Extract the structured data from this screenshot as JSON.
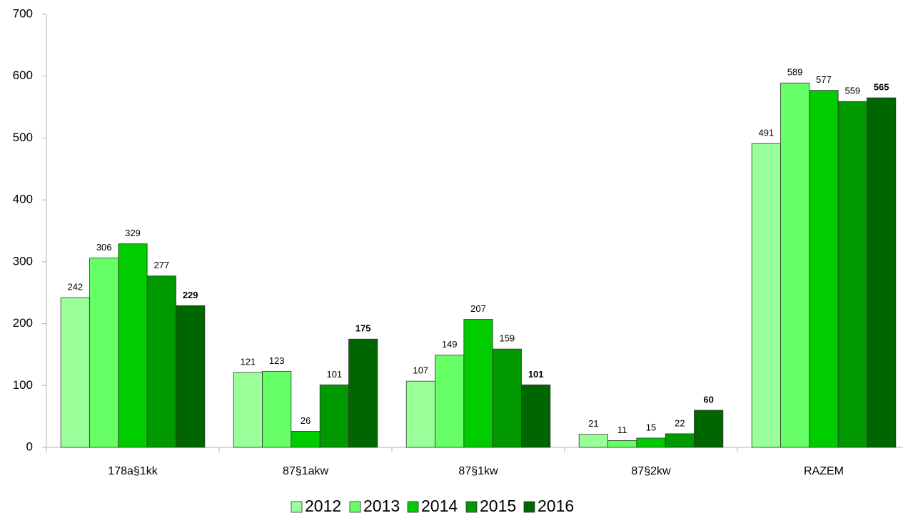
{
  "chart_data": {
    "type": "bar",
    "categories": [
      "178a§1kk",
      "87§1akw",
      "87§1kw",
      "87§2kw",
      "RAZEM"
    ],
    "series": [
      {
        "name": "2012",
        "color": "#99ff99",
        "values": [
          242,
          121,
          107,
          21,
          491
        ]
      },
      {
        "name": "2013",
        "color": "#66ff66",
        "values": [
          306,
          123,
          149,
          11,
          589
        ]
      },
      {
        "name": "2014",
        "color": "#00cc00",
        "values": [
          329,
          26,
          207,
          15,
          577
        ]
      },
      {
        "name": "2015",
        "color": "#009900",
        "values": [
          277,
          101,
          159,
          22,
          559
        ]
      },
      {
        "name": "2016",
        "color": "#006600",
        "values": [
          229,
          175,
          101,
          60,
          565
        ],
        "bold_labels": true
      }
    ],
    "ylim": [
      0,
      700
    ],
    "yticks": [
      0,
      100,
      200,
      300,
      400,
      500,
      600,
      700
    ],
    "legend": "bottom"
  }
}
